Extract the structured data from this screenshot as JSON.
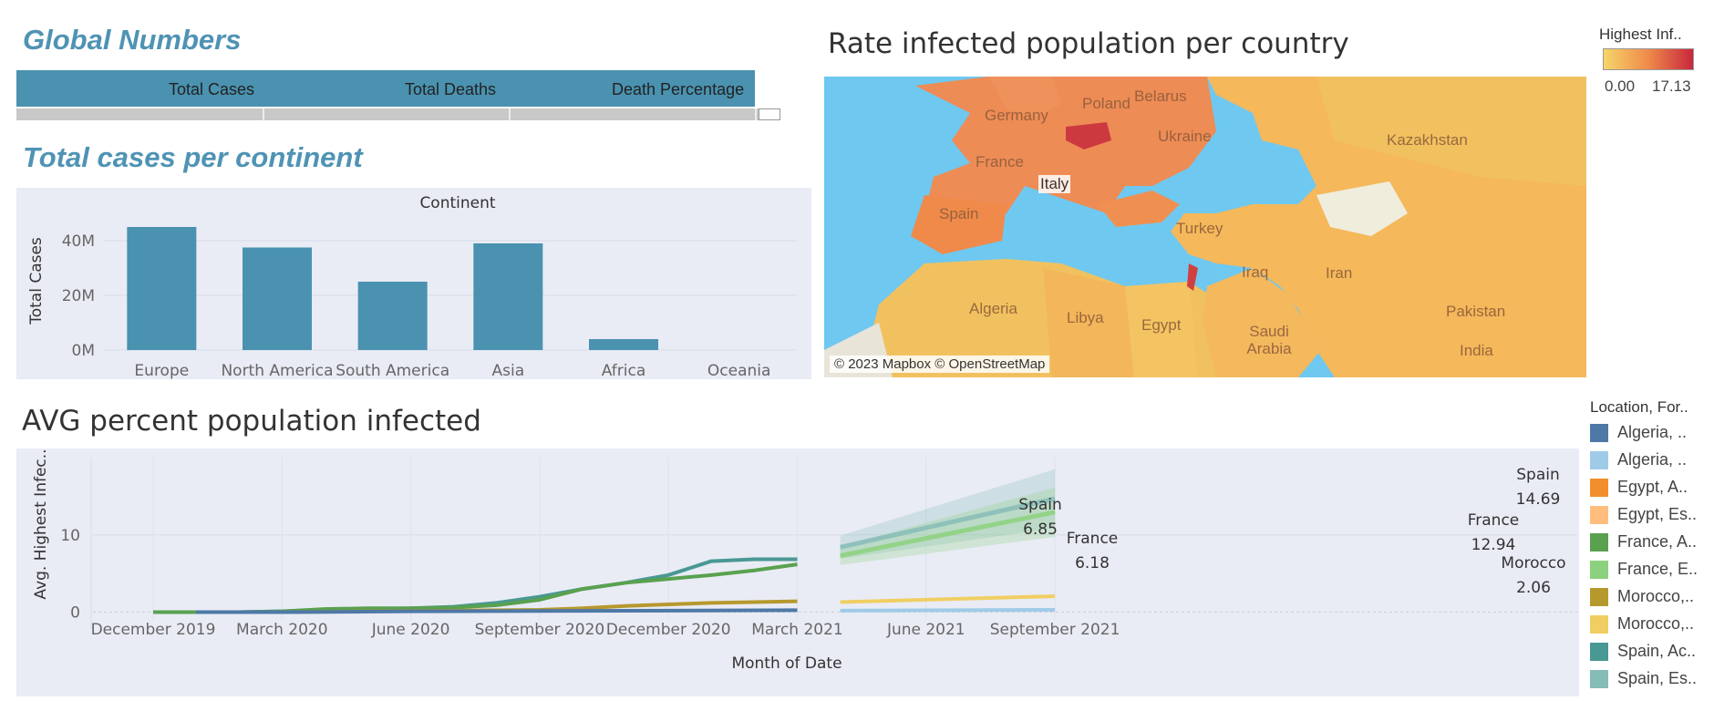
{
  "global_numbers": {
    "title": "Global Numbers",
    "columns": [
      "Total Cases",
      "Total Deaths",
      "Death Percentage"
    ]
  },
  "continent_section": {
    "title": "Total cases per continent"
  },
  "map": {
    "title": "Rate infected population per country",
    "attribution": "© 2023 Mapbox © OpenStreetMap",
    "legend_title": "Highest Inf..",
    "legend_min": "0.00",
    "legend_max": "17.13",
    "colors": {
      "low": "#f6d56a",
      "mid": "#ef8a4a",
      "high": "#c8273d",
      "sea": "#6fc8f0"
    },
    "country_labels": [
      "Germany",
      "Poland",
      "Belarus",
      "Ukraine",
      "Kazakhstan",
      "France",
      "Italy",
      "Spain",
      "Turkey",
      "Algeria",
      "Libya",
      "Egypt",
      "Iraq",
      "Iran",
      "Saudi Arabia",
      "Pakistan",
      "India"
    ]
  },
  "line_section": {
    "title": "AVG percent population infected"
  },
  "legend": {
    "title": "Location, For..",
    "items": [
      {
        "label": "Algeria, ..",
        "color": "#4e79a7"
      },
      {
        "label": "Algeria, ..",
        "color": "#a0cbe8"
      },
      {
        "label": "Egypt, A..",
        "color": "#f28e2b"
      },
      {
        "label": "Egypt, Es..",
        "color": "#ffbe7d"
      },
      {
        "label": "France, A..",
        "color": "#59a14f"
      },
      {
        "label": "France, E..",
        "color": "#8cd17d"
      },
      {
        "label": "Morocco,..",
        "color": "#b6992d"
      },
      {
        "label": "Morocco,..",
        "color": "#f1ce63"
      },
      {
        "label": "Spain, Ac..",
        "color": "#499894"
      },
      {
        "label": "Spain, Es..",
        "color": "#86bcb6"
      }
    ]
  },
  "chart_data": [
    {
      "type": "bar",
      "title": "Continent",
      "categories": [
        "Europe",
        "North America",
        "South America",
        "Asia",
        "Africa",
        "Oceania"
      ],
      "values": [
        45,
        37.5,
        25,
        39,
        4,
        0
      ],
      "ylabel": "Total Cases",
      "ylim": [
        0,
        50
      ],
      "yticks": [
        0,
        20,
        40
      ],
      "ytick_labels": [
        "0M",
        "20M",
        "40M"
      ],
      "color": "#4a92b0"
    },
    {
      "type": "line",
      "xlabel": "Month of Date",
      "ylabel": "Avg. Highest Infec..",
      "ylim": [
        -1,
        20
      ],
      "yticks": [
        0,
        10
      ],
      "x_tick_labels": [
        "December 2019",
        "March 2020",
        "June 2020",
        "September 2020",
        "December 2020",
        "March 2021",
        "June 2021",
        "September 2021"
      ],
      "x_tick_months": [
        0,
        3,
        6,
        9,
        12,
        15,
        18,
        21
      ],
      "series": [
        {
          "name": "Spain, Ac..",
          "color": "#499894",
          "x": [
            0,
            1,
            2,
            3,
            4,
            5,
            6,
            7,
            8,
            9,
            10,
            11,
            12,
            13,
            14,
            15
          ],
          "y": [
            0,
            0,
            0,
            0.1,
            0.3,
            0.4,
            0.5,
            0.7,
            1.2,
            2.0,
            3.0,
            3.8,
            4.8,
            6.6,
            6.85,
            6.85
          ]
        },
        {
          "name": "France, A..",
          "color": "#59a14f",
          "x": [
            0,
            1,
            2,
            3,
            4,
            5,
            6,
            7,
            8,
            9,
            10,
            11,
            12,
            13,
            14,
            15
          ],
          "y": [
            0,
            0,
            0,
            0.1,
            0.4,
            0.5,
            0.5,
            0.6,
            0.9,
            1.6,
            3.0,
            3.8,
            4.3,
            4.8,
            5.4,
            6.18
          ]
        },
        {
          "name": "Morocco,..",
          "color": "#b6992d",
          "x": [
            3,
            5,
            7,
            9,
            10,
            11,
            12,
            13,
            14,
            15
          ],
          "y": [
            0,
            0.1,
            0.2,
            0.3,
            0.5,
            0.8,
            1.0,
            1.2,
            1.3,
            1.4
          ]
        },
        {
          "name": "Algeria, ..",
          "color": "#4e79a7",
          "x": [
            1,
            3,
            6,
            9,
            12,
            15
          ],
          "y": [
            0,
            0,
            0.1,
            0.15,
            0.2,
            0.25
          ]
        },
        {
          "name": "Spain, Es..",
          "color": "#86bcb6",
          "x": [
            16,
            21
          ],
          "y": [
            8.4,
            14.69
          ],
          "band": [
            1.5,
            3.8
          ]
        },
        {
          "name": "France, E..",
          "color": "#8cd17d",
          "x": [
            16,
            21
          ],
          "y": [
            7.3,
            12.94
          ],
          "band": [
            1.2,
            3.2
          ]
        },
        {
          "name": "Morocco,..",
          "color": "#f1ce63",
          "x": [
            16,
            21
          ],
          "y": [
            1.3,
            2.06
          ]
        },
        {
          "name": "Algeria, ..",
          "color": "#a0cbe8",
          "x": [
            16,
            21
          ],
          "y": [
            0.2,
            0.3
          ]
        }
      ],
      "annotations": [
        {
          "text": "Spain",
          "value": "6.85"
        },
        {
          "text": "France",
          "value": "6.18"
        },
        {
          "text": "Spain",
          "value": "14.69"
        },
        {
          "text": "France",
          "value": "12.94"
        },
        {
          "text": "Morocco",
          "value": "2.06"
        }
      ]
    }
  ]
}
